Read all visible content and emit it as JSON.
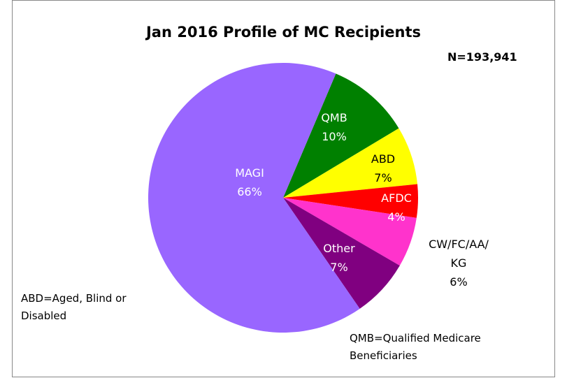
{
  "chart_data": {
    "type": "pie",
    "title": "Jan 2016 Profile of MC Recipients",
    "subtitle": "N=193,941",
    "categories": [
      "QMB",
      "ABD",
      "AFDC",
      "CW/FC/AA/KG",
      "Other",
      "MAGI"
    ],
    "values": [
      10,
      7,
      4,
      6,
      7,
      66
    ],
    "value_labels": [
      "10%",
      "7%",
      "4%",
      "6%",
      "7%",
      "66%"
    ],
    "colors": [
      "#008000",
      "#ffff00",
      "#ff0000",
      "#ff33cc",
      "#800080",
      "#9966ff"
    ],
    "annotations": [
      "ABD=Aged, Blind or Disabled",
      "QMB=Qualified Medicare Beneficiaries"
    ]
  }
}
